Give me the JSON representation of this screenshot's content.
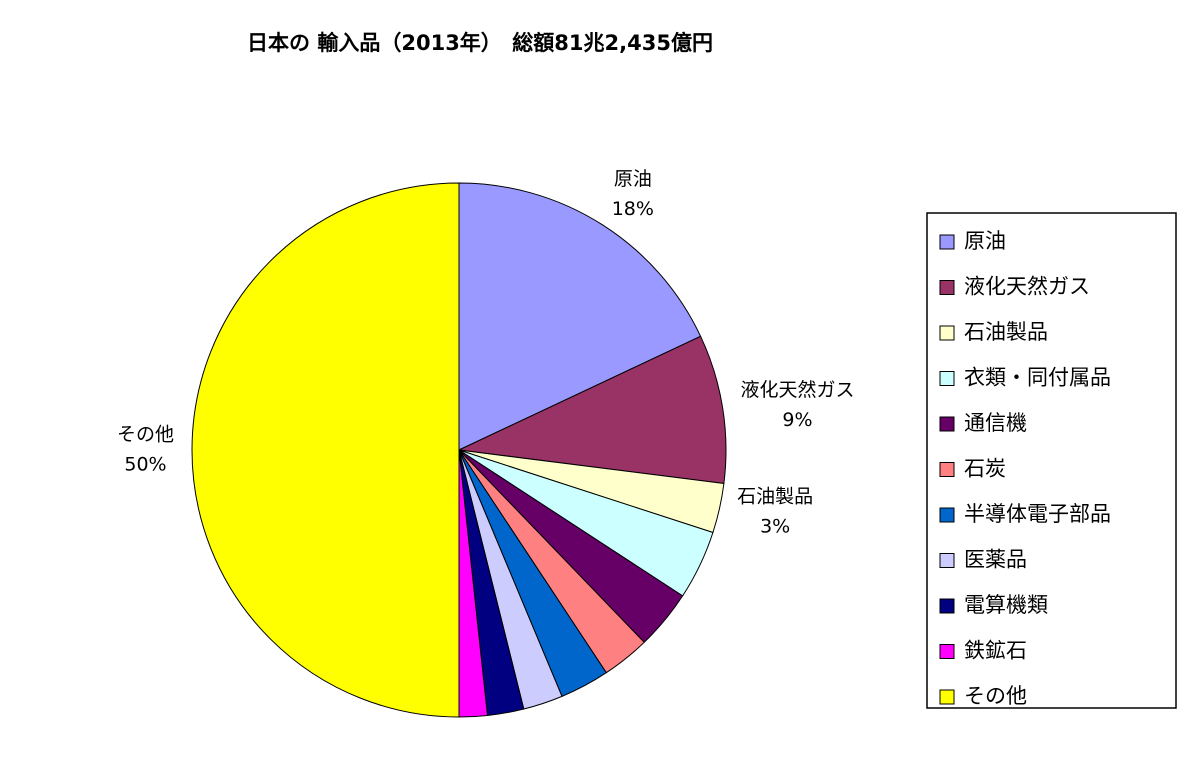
{
  "chart_data": {
    "type": "pie",
    "title": "日本の 輸入品（2013年）　総額81兆2,435億円",
    "categories": [
      "原油",
      "液化天然ガス",
      "石油製品",
      "衣類・同付属品",
      "通信機",
      "石炭",
      "半導体電子部品",
      "医薬品",
      "電算機類",
      "鉄鉱石",
      "その他"
    ],
    "values": [
      18,
      9,
      3,
      4.2,
      3.6,
      2.9,
      3.0,
      2.4,
      2.2,
      1.7,
      50
    ],
    "value_labels": [
      "18%",
      "9%",
      "3%",
      null,
      null,
      null,
      null,
      null,
      null,
      null,
      "50%"
    ],
    "colors": [
      "#9999ff",
      "#993366",
      "#ffffcc",
      "#ccffff",
      "#660066",
      "#ff8080",
      "#0066cc",
      "#ccccff",
      "#000080",
      "#ff00ff",
      "#ffff00"
    ],
    "legend": "right"
  }
}
